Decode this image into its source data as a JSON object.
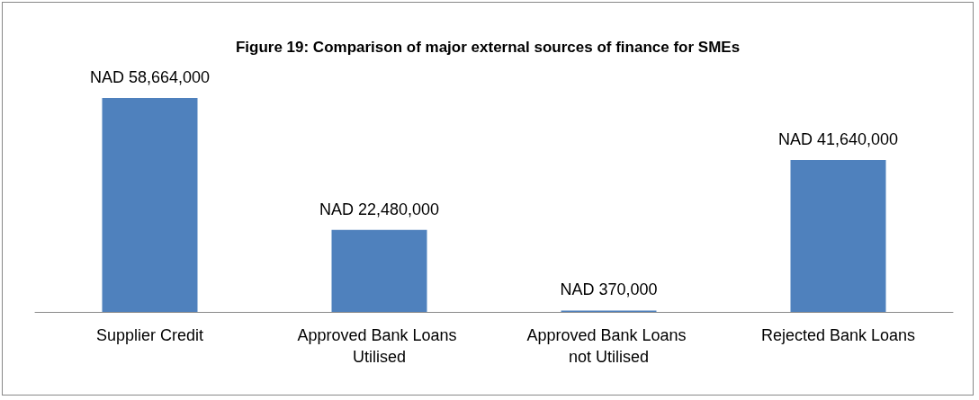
{
  "chart_data": {
    "type": "bar",
    "title": "Figure 19: Comparison of major external sources of finance for SMEs",
    "categories": [
      "Supplier Credit",
      "Approved Bank Loans Utilised",
      "Approved Bank Loans not Utilised",
      "Rejected Bank Loans"
    ],
    "values": [
      58664000,
      22480000,
      370000,
      41640000
    ],
    "value_labels": [
      "NAD 58,664,000",
      "NAD 22,480,000",
      "NAD 370,000",
      "NAD 41,640,000"
    ],
    "color": "#4f81bd"
  }
}
